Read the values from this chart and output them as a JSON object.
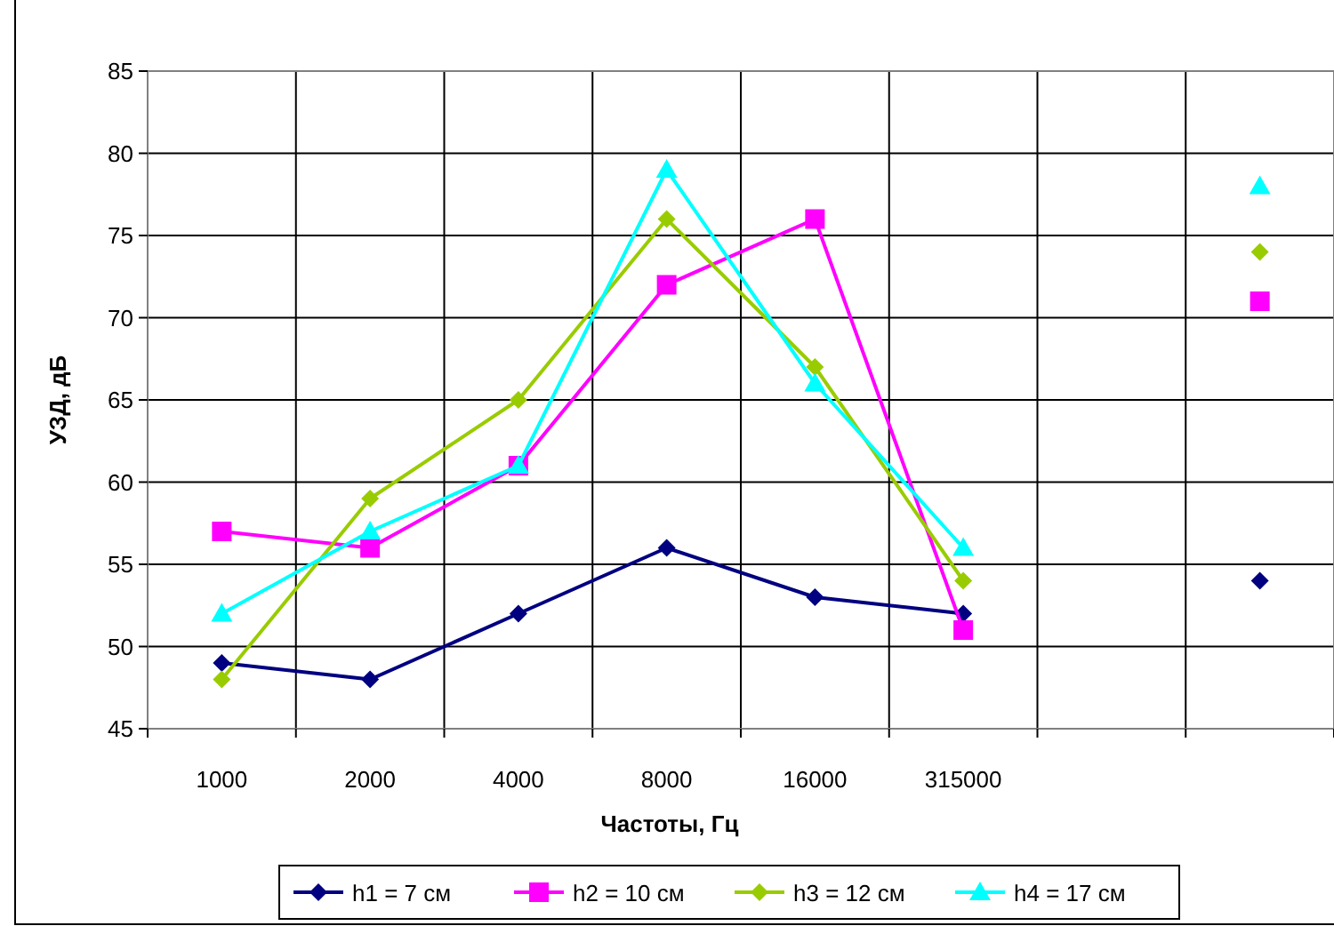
{
  "chart_data": {
    "type": "line",
    "xlabel": "Частоты, Гц",
    "ylabel": "УЗД, дБ",
    "categories": [
      "1000",
      "2000",
      "4000",
      "8000",
      "16000",
      "315000",
      null,
      null
    ],
    "ylim": [
      45,
      85
    ],
    "yticks": [
      45,
      50,
      55,
      60,
      65,
      70,
      75,
      80,
      85
    ],
    "grid": true,
    "legend": "bottom",
    "series": [
      {
        "name": "h1 = 7 см",
        "color": "#000080",
        "marker": "diamond",
        "values": [
          49,
          48,
          52,
          56,
          53,
          52,
          null,
          54
        ]
      },
      {
        "name": "h2 = 10 см",
        "color": "#ff00ff",
        "marker": "square",
        "values": [
          57,
          56,
          61,
          72,
          76,
          51,
          null,
          71
        ]
      },
      {
        "name": "h3 = 12 см",
        "color": "#99cc00",
        "marker": "diamond",
        "values": [
          48,
          59,
          65,
          76,
          67,
          54,
          null,
          74
        ]
      },
      {
        "name": "h4 = 17 см",
        "color": "#00ffff",
        "marker": "triangle",
        "values": [
          52,
          57,
          61,
          79,
          66,
          56,
          null,
          78
        ]
      }
    ]
  }
}
